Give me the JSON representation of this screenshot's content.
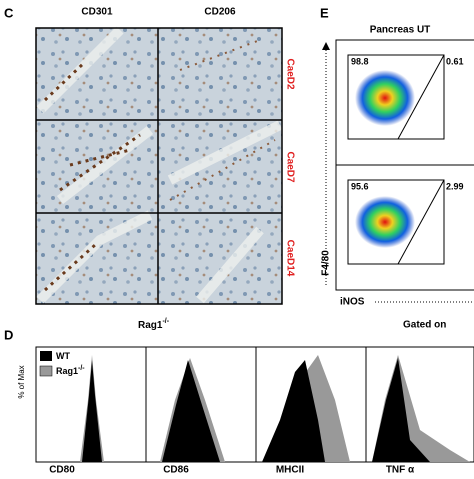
{
  "panel_c": {
    "letter": "C",
    "columns": [
      "CD301",
      "CD206"
    ],
    "rows": [
      "CaeD2",
      "CaeD7",
      "CaeD14"
    ],
    "footer": {
      "base": "Rag1",
      "sup": "-/-"
    }
  },
  "panel_d": {
    "letter": "D",
    "y_label": "% of Max",
    "legend": [
      {
        "base": "WT",
        "sup": null
      },
      {
        "base": "Rag1",
        "sup": "-/-"
      }
    ],
    "markers": [
      "CD80",
      "CD86",
      "MHCII",
      "TNF α"
    ]
  },
  "panel_e": {
    "letter": "E",
    "title": "Pancreas UT",
    "gates": [
      [
        "98.8",
        "0.61"
      ],
      [
        "95.6",
        "2.99"
      ]
    ],
    "y_label": "F4/80",
    "x_label": "iNOS",
    "footer": "Gated on"
  }
}
